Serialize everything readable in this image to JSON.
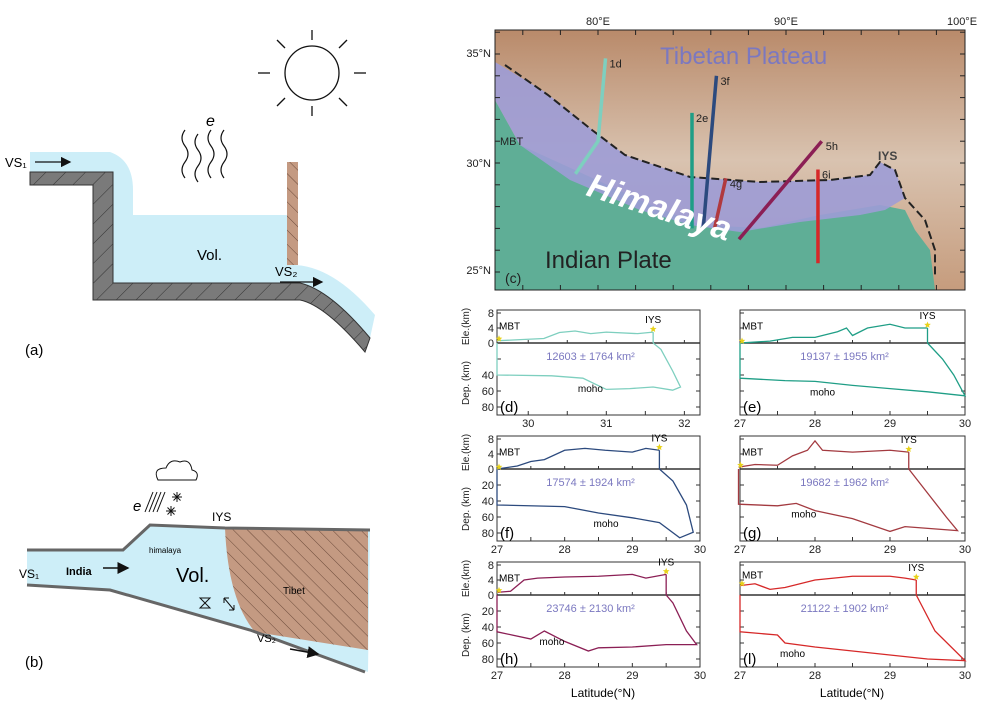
{
  "panel_a": {
    "label": "(a)",
    "vs1": "VS₁",
    "vs2": "VS₂",
    "vol": "Vol.",
    "evap": "e",
    "icons": [
      "sun-icon",
      "evaporation-wave-icon",
      "flow-arrow-icon"
    ]
  },
  "panel_b": {
    "label": "(b)",
    "vs1": "VS₁",
    "vs2": "VS₂",
    "india": "India",
    "himalaya": "himalaya",
    "vol": "Vol.",
    "tibet": "Tibet",
    "iys": "IYS",
    "evap": "e",
    "icons": [
      "cloud-icon",
      "rain-icon",
      "snow-icon",
      "flow-arrow-icon"
    ]
  },
  "map": {
    "label": "(c)",
    "lon_ticks": [
      "80°E",
      "90°E",
      "100°E"
    ],
    "lat_ticks": [
      "35°N",
      "30°N",
      "25°N"
    ],
    "tibet_label": "Tibetan Plateau",
    "himalaya_label": "Himalaya",
    "india_label": "Indian Plate",
    "mbt_label": "MBT",
    "iys_label": "IYS",
    "colors": {
      "himalaya": "#9d9cd6",
      "plateau": "#c9a589",
      "plain": "#5fae96",
      "label": "#7b78c0"
    },
    "profiles": [
      {
        "id": "1d",
        "color": "#7ecfbf",
        "path": [
          [
            80.4,
            34.8
          ],
          [
            80.0,
            31.0
          ],
          [
            78.8,
            29.5
          ]
        ]
      },
      {
        "id": "2e",
        "color": "#1f9e86",
        "path": [
          [
            85.0,
            32.3
          ],
          [
            85.0,
            27.0
          ]
        ]
      },
      {
        "id": "3f",
        "color": "#2c4a7e",
        "path": [
          [
            86.3,
            34.0
          ],
          [
            85.6,
            27.0
          ]
        ]
      },
      {
        "id": "4g",
        "color": "#b0393e",
        "path": [
          [
            86.8,
            29.3
          ],
          [
            86.2,
            27.0
          ]
        ]
      },
      {
        "id": "5h",
        "color": "#8b1f55",
        "path": [
          [
            91.9,
            31.0
          ],
          [
            87.5,
            26.5
          ]
        ]
      },
      {
        "id": "6i",
        "color": "#d62828",
        "path": [
          [
            91.7,
            29.7
          ],
          [
            91.7,
            25.4
          ]
        ]
      }
    ]
  },
  "profiles_common": {
    "ele_ylabel": "Ele.(km)",
    "dep_ylabel": "Dep. (km)",
    "xlabel": "Latitude(°N)",
    "moho": "moho",
    "mbt": "MBT",
    "iys": "IYS",
    "area_color": "#7b78c0",
    "marker_color": "#e8d21a"
  },
  "chart_data": [
    {
      "type": "line",
      "label": "(d)",
      "color": "#7ecfbf",
      "xlim": [
        29.6,
        32.2
      ],
      "xticks": [
        "30",
        "31",
        "32"
      ],
      "ele_ylim": [
        0,
        8
      ],
      "ele_ticks": [
        "8",
        "4",
        "0"
      ],
      "dep_ylim": [
        0,
        90
      ],
      "dep_ticks": [
        "40",
        "60",
        "80"
      ],
      "area": "12603 ± 1764 km²",
      "iys_lat": 31.6,
      "elevation": [
        [
          29.6,
          0.6
        ],
        [
          29.9,
          0.9
        ],
        [
          30.2,
          1.2
        ],
        [
          30.4,
          2.8
        ],
        [
          30.6,
          3.2
        ],
        [
          30.8,
          2.5
        ],
        [
          31.0,
          2.9
        ],
        [
          31.4,
          2.5
        ],
        [
          31.6,
          2.9
        ]
      ],
      "moho": [
        [
          29.6,
          40
        ],
        [
          30.3,
          41
        ],
        [
          30.7,
          44
        ],
        [
          31.0,
          58
        ],
        [
          31.3,
          57
        ],
        [
          31.6,
          55
        ],
        [
          31.85,
          59
        ],
        [
          31.95,
          55
        ]
      ],
      "boundary": [
        [
          31.6,
          0
        ],
        [
          31.7,
          8
        ],
        [
          31.85,
          35
        ],
        [
          31.95,
          55
        ]
      ]
    },
    {
      "type": "line",
      "label": "(e)",
      "color": "#1f9e86",
      "xlim": [
        27,
        30
      ],
      "xticks": [
        "27",
        "28",
        "29",
        "30"
      ],
      "ele_ylim": [
        0,
        8
      ],
      "ele_ticks": [],
      "dep_ylim": [
        0,
        90
      ],
      "dep_ticks": [],
      "area": "19137 ± 1955 km²",
      "iys_lat": 29.5,
      "elevation": [
        [
          27,
          0
        ],
        [
          27.4,
          0.5
        ],
        [
          27.7,
          1.5
        ],
        [
          28,
          1.5
        ],
        [
          28.3,
          3
        ],
        [
          28.42,
          4
        ],
        [
          28.5,
          2
        ],
        [
          28.7,
          4
        ],
        [
          29,
          5
        ],
        [
          29.2,
          4
        ],
        [
          29.5,
          4
        ]
      ],
      "moho": [
        [
          27,
          44
        ],
        [
          27.6,
          47
        ],
        [
          28,
          48
        ],
        [
          28.5,
          53
        ],
        [
          29,
          57
        ],
        [
          29.5,
          61
        ],
        [
          30,
          66
        ]
      ],
      "boundary": [
        [
          29.5,
          0
        ],
        [
          29.7,
          20
        ],
        [
          29.85,
          40
        ],
        [
          30,
          66
        ]
      ]
    },
    {
      "type": "line",
      "label": "(f)",
      "color": "#2c4a7e",
      "xlim": [
        27,
        30
      ],
      "xticks": [
        "27",
        "28",
        "29",
        "30"
      ],
      "ele_ylim": [
        0,
        8
      ],
      "ele_ticks": [
        "8",
        "4",
        "0"
      ],
      "dep_ylim": [
        0,
        90
      ],
      "dep_ticks": [
        "20",
        "40",
        "60",
        "80"
      ],
      "area": "17574 ± 1924 km²",
      "iys_lat": 29.4,
      "elevation": [
        [
          27,
          0
        ],
        [
          27.3,
          0.8
        ],
        [
          27.5,
          2
        ],
        [
          27.7,
          2.5
        ],
        [
          28,
          5
        ],
        [
          28.3,
          5.5
        ],
        [
          28.6,
          5
        ],
        [
          29,
          4.5
        ],
        [
          29.2,
          5.5
        ],
        [
          29.4,
          5
        ]
      ],
      "moho": [
        [
          27,
          45
        ],
        [
          28,
          47
        ],
        [
          28.5,
          55
        ],
        [
          29,
          61
        ],
        [
          29.4,
          67
        ],
        [
          29.7,
          86
        ],
        [
          29.9,
          79
        ]
      ],
      "boundary": [
        [
          29.4,
          0
        ],
        [
          29.6,
          15
        ],
        [
          29.8,
          45
        ],
        [
          29.9,
          79
        ]
      ]
    },
    {
      "type": "line",
      "label": "(g)",
      "color": "#a33a40",
      "xlim": [
        27,
        30
      ],
      "xticks": [
        "27",
        "28",
        "29",
        "30"
      ],
      "ele_ylim": [
        0,
        8
      ],
      "ele_ticks": [],
      "dep_ylim": [
        0,
        90
      ],
      "dep_ticks": [],
      "area": "19682 ± 1962 km²",
      "iys_lat": 29.25,
      "elevation": [
        [
          26.98,
          0.5
        ],
        [
          27.2,
          1.2
        ],
        [
          27.5,
          1
        ],
        [
          27.7,
          3.5
        ],
        [
          27.9,
          5
        ],
        [
          28.0,
          7.5
        ],
        [
          28.1,
          5
        ],
        [
          28.5,
          4.5
        ],
        [
          29,
          5
        ],
        [
          29.25,
          4.5
        ]
      ],
      "moho": [
        [
          26.98,
          44
        ],
        [
          27.5,
          46
        ],
        [
          27.75,
          43
        ],
        [
          28.0,
          52
        ],
        [
          28.5,
          62
        ],
        [
          29.0,
          78
        ],
        [
          29.2,
          72
        ],
        [
          29.9,
          77
        ]
      ],
      "boundary": [
        [
          29.25,
          0
        ],
        [
          29.5,
          30
        ],
        [
          29.75,
          60
        ],
        [
          29.9,
          77
        ]
      ]
    },
    {
      "type": "line",
      "label": "(h)",
      "color": "#8b1f55",
      "xlim": [
        27,
        30
      ],
      "xticks": [
        "27",
        "28",
        "29",
        "30"
      ],
      "ele_ylim": [
        0,
        8
      ],
      "ele_ticks": [
        "8",
        "4",
        "0"
      ],
      "dep_ylim": [
        0,
        90
      ],
      "dep_ticks": [
        "20",
        "40",
        "60",
        "80"
      ],
      "area": "23746 ± 2130 km²",
      "iys_lat": 29.5,
      "elevation": [
        [
          27,
          0.7
        ],
        [
          27.2,
          1
        ],
        [
          27.4,
          4
        ],
        [
          27.6,
          4.5
        ],
        [
          28,
          4.8
        ],
        [
          28.5,
          5
        ],
        [
          29,
          5.5
        ],
        [
          29.2,
          4.5
        ],
        [
          29.5,
          5.5
        ]
      ],
      "moho": [
        [
          27,
          46
        ],
        [
          27.5,
          55
        ],
        [
          27.7,
          45
        ],
        [
          28,
          58
        ],
        [
          28.35,
          70
        ],
        [
          28.5,
          66
        ],
        [
          29,
          65
        ],
        [
          29.5,
          62
        ],
        [
          29.95,
          62
        ]
      ],
      "boundary": [
        [
          29.5,
          0
        ],
        [
          29.6,
          10
        ],
        [
          29.8,
          45
        ],
        [
          29.95,
          62
        ]
      ]
    },
    {
      "type": "line",
      "label": "(l)",
      "color": "#d62828",
      "xlim": [
        27,
        30
      ],
      "xticks": [
        "27",
        "28",
        "29",
        "30"
      ],
      "ele_ylim": [
        0,
        8
      ],
      "ele_ticks": [],
      "dep_ylim": [
        0,
        90
      ],
      "dep_ticks": [],
      "area": "21122 ± 1902 km²",
      "iys_lat": 29.35,
      "elevation": [
        [
          27,
          2.5
        ],
        [
          27.2,
          3
        ],
        [
          27.4,
          1.5
        ],
        [
          27.6,
          2
        ],
        [
          28,
          4
        ],
        [
          28.5,
          5
        ],
        [
          29,
          5
        ],
        [
          29.2,
          4.5
        ],
        [
          29.35,
          4
        ]
      ],
      "moho": [
        [
          27,
          46
        ],
        [
          27.5,
          50
        ],
        [
          27.6,
          60
        ],
        [
          28,
          65
        ],
        [
          29,
          75
        ],
        [
          29.5,
          80
        ],
        [
          30,
          82
        ]
      ],
      "boundary": [
        [
          29.35,
          0
        ],
        [
          29.6,
          45
        ],
        [
          30,
          82
        ]
      ]
    }
  ]
}
